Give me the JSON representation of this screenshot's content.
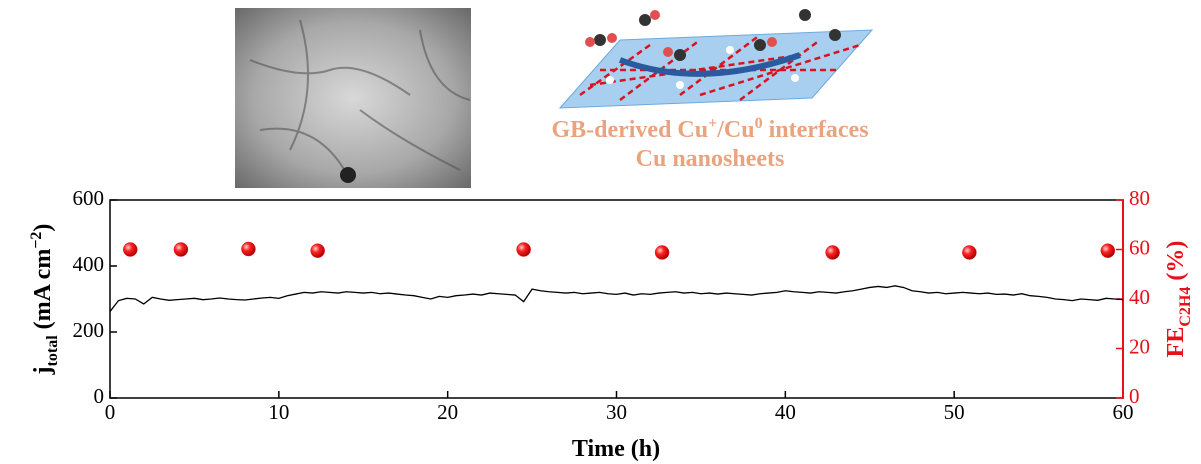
{
  "chart_data": {
    "type": "line",
    "annotation": {
      "line1": [
        "GB-derived Cu",
        "+",
        "/Cu",
        "0",
        " interfaces"
      ],
      "line2": "Cu nanosheets"
    },
    "x_label": "Time (h)",
    "y_label": [
      "j",
      "total",
      " (mA cm",
      "−2",
      ")"
    ],
    "y2_label": [
      "FE",
      "C2H4",
      " (%)"
    ],
    "xlim": [
      0,
      60
    ],
    "xticks": [
      0,
      10,
      20,
      30,
      40,
      50,
      60
    ],
    "ylim": [
      0,
      600
    ],
    "yticks": [
      0,
      200,
      400,
      600
    ],
    "y2lim": [
      0,
      80
    ],
    "y2ticks": [
      0,
      20,
      40,
      60,
      80
    ],
    "y2color": "#e8101a",
    "series": [
      {
        "type": "line",
        "color": "#000000",
        "x": [
          0,
          0.5,
          1,
          1.5,
          2,
          2.5,
          3,
          3.5,
          4,
          4.5,
          5,
          5.5,
          6,
          6.5,
          7,
          7.5,
          8,
          8.5,
          9,
          9.5,
          10,
          10.5,
          11,
          11.5,
          12,
          12.5,
          13,
          13.5,
          14,
          14.5,
          15,
          15.5,
          16,
          16.5,
          17,
          17.5,
          18,
          18.5,
          19,
          19.5,
          20,
          20.5,
          21,
          21.5,
          22,
          22.5,
          23,
          23.5,
          24,
          24.5,
          25,
          25.5,
          26,
          26.5,
          27,
          27.5,
          28,
          28.5,
          29,
          29.5,
          30,
          30.5,
          31,
          31.5,
          32,
          32.5,
          33,
          33.5,
          34,
          34.5,
          35,
          35.5,
          36,
          36.5,
          37,
          37.5,
          38,
          38.5,
          39,
          39.5,
          40,
          40.5,
          41,
          41.5,
          42,
          42.5,
          43,
          43.5,
          44,
          44.5,
          45,
          45.5,
          46,
          46.5,
          47,
          47.5,
          48,
          48.5,
          49,
          49.5,
          50,
          50.5,
          51,
          51.5,
          52,
          52.5,
          53,
          53.5,
          54,
          54.5,
          55,
          55.5,
          56,
          56.5,
          57,
          57.5,
          58,
          58.5,
          59,
          59.5,
          60
        ],
        "values": [
          262,
          295,
          302,
          300,
          285,
          305,
          300,
          296,
          298,
          300,
          302,
          298,
          300,
          303,
          300,
          298,
          297,
          300,
          303,
          305,
          302,
          310,
          315,
          320,
          318,
          322,
          320,
          318,
          322,
          320,
          318,
          320,
          316,
          318,
          315,
          312,
          310,
          305,
          300,
          308,
          305,
          310,
          312,
          315,
          312,
          318,
          316,
          314,
          312,
          292,
          330,
          325,
          322,
          320,
          318,
          320,
          316,
          318,
          320,
          316,
          314,
          318,
          312,
          316,
          314,
          318,
          320,
          322,
          318,
          320,
          316,
          318,
          315,
          318,
          316,
          314,
          312,
          316,
          318,
          320,
          325,
          322,
          320,
          318,
          322,
          320,
          318,
          322,
          325,
          330,
          335,
          338,
          335,
          340,
          335,
          325,
          322,
          318,
          320,
          316,
          318,
          320,
          318,
          316,
          318,
          314,
          315,
          312,
          316,
          310,
          308,
          305,
          300,
          298,
          295,
          300,
          298,
          296,
          302,
          300,
          298
        ]
      },
      {
        "type": "scatter",
        "axis": "y2",
        "color": "#e8101a",
        "x": [
          1.2,
          4.2,
          8.2,
          12.3,
          24.5,
          32.7,
          42.8,
          50.9,
          59.1
        ],
        "values": [
          60,
          60,
          60.2,
          59.5,
          60,
          58.8,
          58.8,
          58.8,
          59.5
        ]
      }
    ]
  }
}
